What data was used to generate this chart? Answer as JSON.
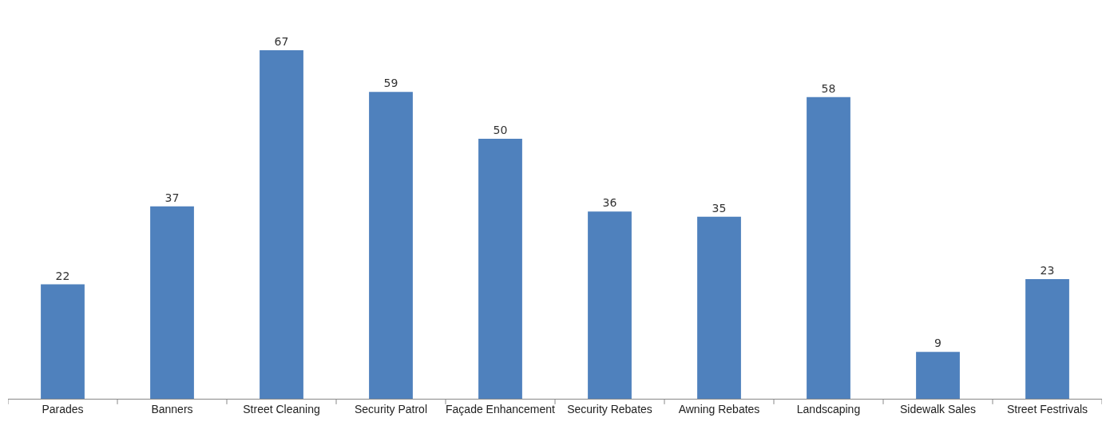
{
  "chart_data": {
    "type": "bar",
    "categories": [
      "Parades",
      "Banners",
      "Street Cleaning",
      "Security Patrol",
      "Façade Enhancement",
      "Security Rebates",
      "Awning Rebates",
      "Landscaping",
      "Sidewalk Sales",
      "Street Festrivals"
    ],
    "values": [
      22,
      37,
      67,
      59,
      50,
      36,
      35,
      58,
      9,
      23
    ],
    "color": "#4f81bd",
    "data_labels": true,
    "tick_labels": "x"
  }
}
